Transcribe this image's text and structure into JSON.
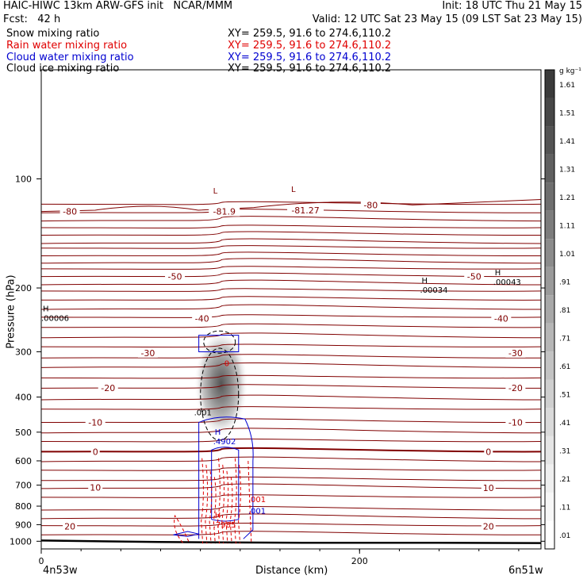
{
  "header": {
    "line1_left": "HAIC-HIWC 13km ARW-GFS init   NCAR/MMM",
    "line1_right": "Init: 18 UTC Thu 21 May 15",
    "line2_left": "Fcst:   42 h",
    "line2_right": "Valid: 12 UTC Sat 23 May 15 (09 LST Sat 23 May 15)",
    "fields": [
      {
        "name": "Snow mixing ratio",
        "xy": "XY= 259.5, 91.6 to 274.6,110.2",
        "color": "#000000"
      },
      {
        "name": "Rain water mixing ratio",
        "xy": "XY= 259.5, 91.6 to 274.6,110.2",
        "color": "#e00000"
      },
      {
        "name": "Cloud water mixing ratio",
        "xy": "XY= 259.5, 91.6 to 274.6,110.2",
        "color": "#0000d0"
      },
      {
        "name": "Cloud ice mixing ratio",
        "xy": "XY= 259.5, 91.6 to 274.6,110.2",
        "color": "#000000"
      }
    ]
  },
  "chart_data": {
    "type": "contour-cross-section",
    "xlabel": "Distance (km)",
    "ylabel": "Pressure (hPa)",
    "x_ticks": [
      0,
      200
    ],
    "y_ticks": [
      100,
      200,
      300,
      400,
      500,
      600,
      700,
      800,
      900,
      1000
    ],
    "xlim": [
      0,
      314
    ],
    "ylim": [
      1050,
      50
    ],
    "y_scale": "log",
    "x_endpoints": {
      "left": "4n53w",
      "right": "6n51w"
    },
    "colorbar": {
      "unit": "g kg⁻¹",
      "levels": [
        ".01",
        ".11",
        ".21",
        ".31",
        ".41",
        ".51",
        ".61",
        ".71",
        ".81",
        ".91",
        "1.01",
        "1.11",
        "1.21",
        "1.31",
        "1.41",
        "1.51",
        "1.61"
      ],
      "colors": [
        "#ffffff",
        "#f7f7f7",
        "#efefef",
        "#e5e5e5",
        "#dadada",
        "#cfcfcf",
        "#c3c3c3",
        "#b6b6b6",
        "#a8a8a8",
        "#9a9a9a",
        "#8b8b8b",
        "#7c7c7c",
        "#6e6e6e",
        "#606060",
        "#535353",
        "#474747",
        "#3b3b3b"
      ]
    },
    "temperature_contours": {
      "color": "#800000",
      "labels": [
        {
          "text": "-80",
          "x": 18,
          "p": 123
        },
        {
          "text": "-81.9",
          "x": 115,
          "p": 123
        },
        {
          "text": "-81.27",
          "x": 166,
          "p": 122
        },
        {
          "text": "-80",
          "x": 207,
          "p": 118
        },
        {
          "text": "-50",
          "x": 84,
          "p": 186
        },
        {
          "text": "-50",
          "x": 272,
          "p": 186
        },
        {
          "text": "-40",
          "x": 101,
          "p": 243
        },
        {
          "text": "-40",
          "x": 289,
          "p": 243
        },
        {
          "text": "-30",
          "x": 67,
          "p": 302
        },
        {
          "text": "-30",
          "x": 298,
          "p": 302
        },
        {
          "text": "-20",
          "x": 42,
          "p": 377
        },
        {
          "text": "-20",
          "x": 298,
          "p": 377
        },
        {
          "text": "-10",
          "x": 34,
          "p": 470
        },
        {
          "text": "-10",
          "x": 298,
          "p": 470
        },
        {
          "text": "0",
          "x": 34,
          "p": 566
        },
        {
          "text": "0",
          "x": 281,
          "p": 566
        },
        {
          "text": "10",
          "x": 34,
          "p": 710
        },
        {
          "text": "10",
          "x": 281,
          "p": 712
        },
        {
          "text": "20",
          "x": 18,
          "p": 910
        },
        {
          "text": "20",
          "x": 281,
          "p": 910
        }
      ]
    },
    "extrema_labels": [
      {
        "letter": "L",
        "value": "",
        "x": 107,
        "p": 112,
        "color": "#800000"
      },
      {
        "letter": "L",
        "value": "",
        "x": 156,
        "p": 111,
        "color": "#800000"
      },
      {
        "letter": "H",
        "value": ".00043",
        "x": 284,
        "p": 188,
        "color": "#000000"
      },
      {
        "letter": "H",
        "value": ".00034",
        "x": 238,
        "p": 198,
        "color": "#000000"
      },
      {
        "letter": "H",
        "value": ".00006",
        "x": 0,
        "p": 237,
        "color": "#000000"
      },
      {
        "letter": "H",
        "value": ".4902",
        "x": 108,
        "p": 518,
        "color": "#0000d0"
      },
      {
        "letter": "H",
        "value": ".7985",
        "x": 108,
        "p": 880,
        "color": "#e00000"
      }
    ],
    "contour_value_labels": [
      {
        "text": ".001",
        "x": 96,
        "p": 440,
        "color": "#000000"
      },
      {
        "text": ".001",
        "x": 130,
        "p": 765,
        "color": "#e00000"
      },
      {
        "text": ".001",
        "x": 130,
        "p": 822,
        "color": "#0000d0"
      },
      {
        "text": "0",
        "x": 115,
        "p": 322,
        "color": "#e00000"
      }
    ],
    "series": [
      {
        "name": "Snow mixing ratio",
        "style": "grey shading",
        "peak_gkg": 1.2,
        "center_km": 113,
        "center_hpa": 380
      },
      {
        "name": "Rain water mixing ratio",
        "style": "red dashed contours",
        "max_label": ".7985"
      },
      {
        "name": "Cloud water mixing ratio",
        "style": "blue solid contours",
        "max_label": ".4902"
      },
      {
        "name": "Cloud ice mixing ratio",
        "style": "black dashed contours",
        "contour": ".001"
      }
    ],
    "grid": false
  }
}
